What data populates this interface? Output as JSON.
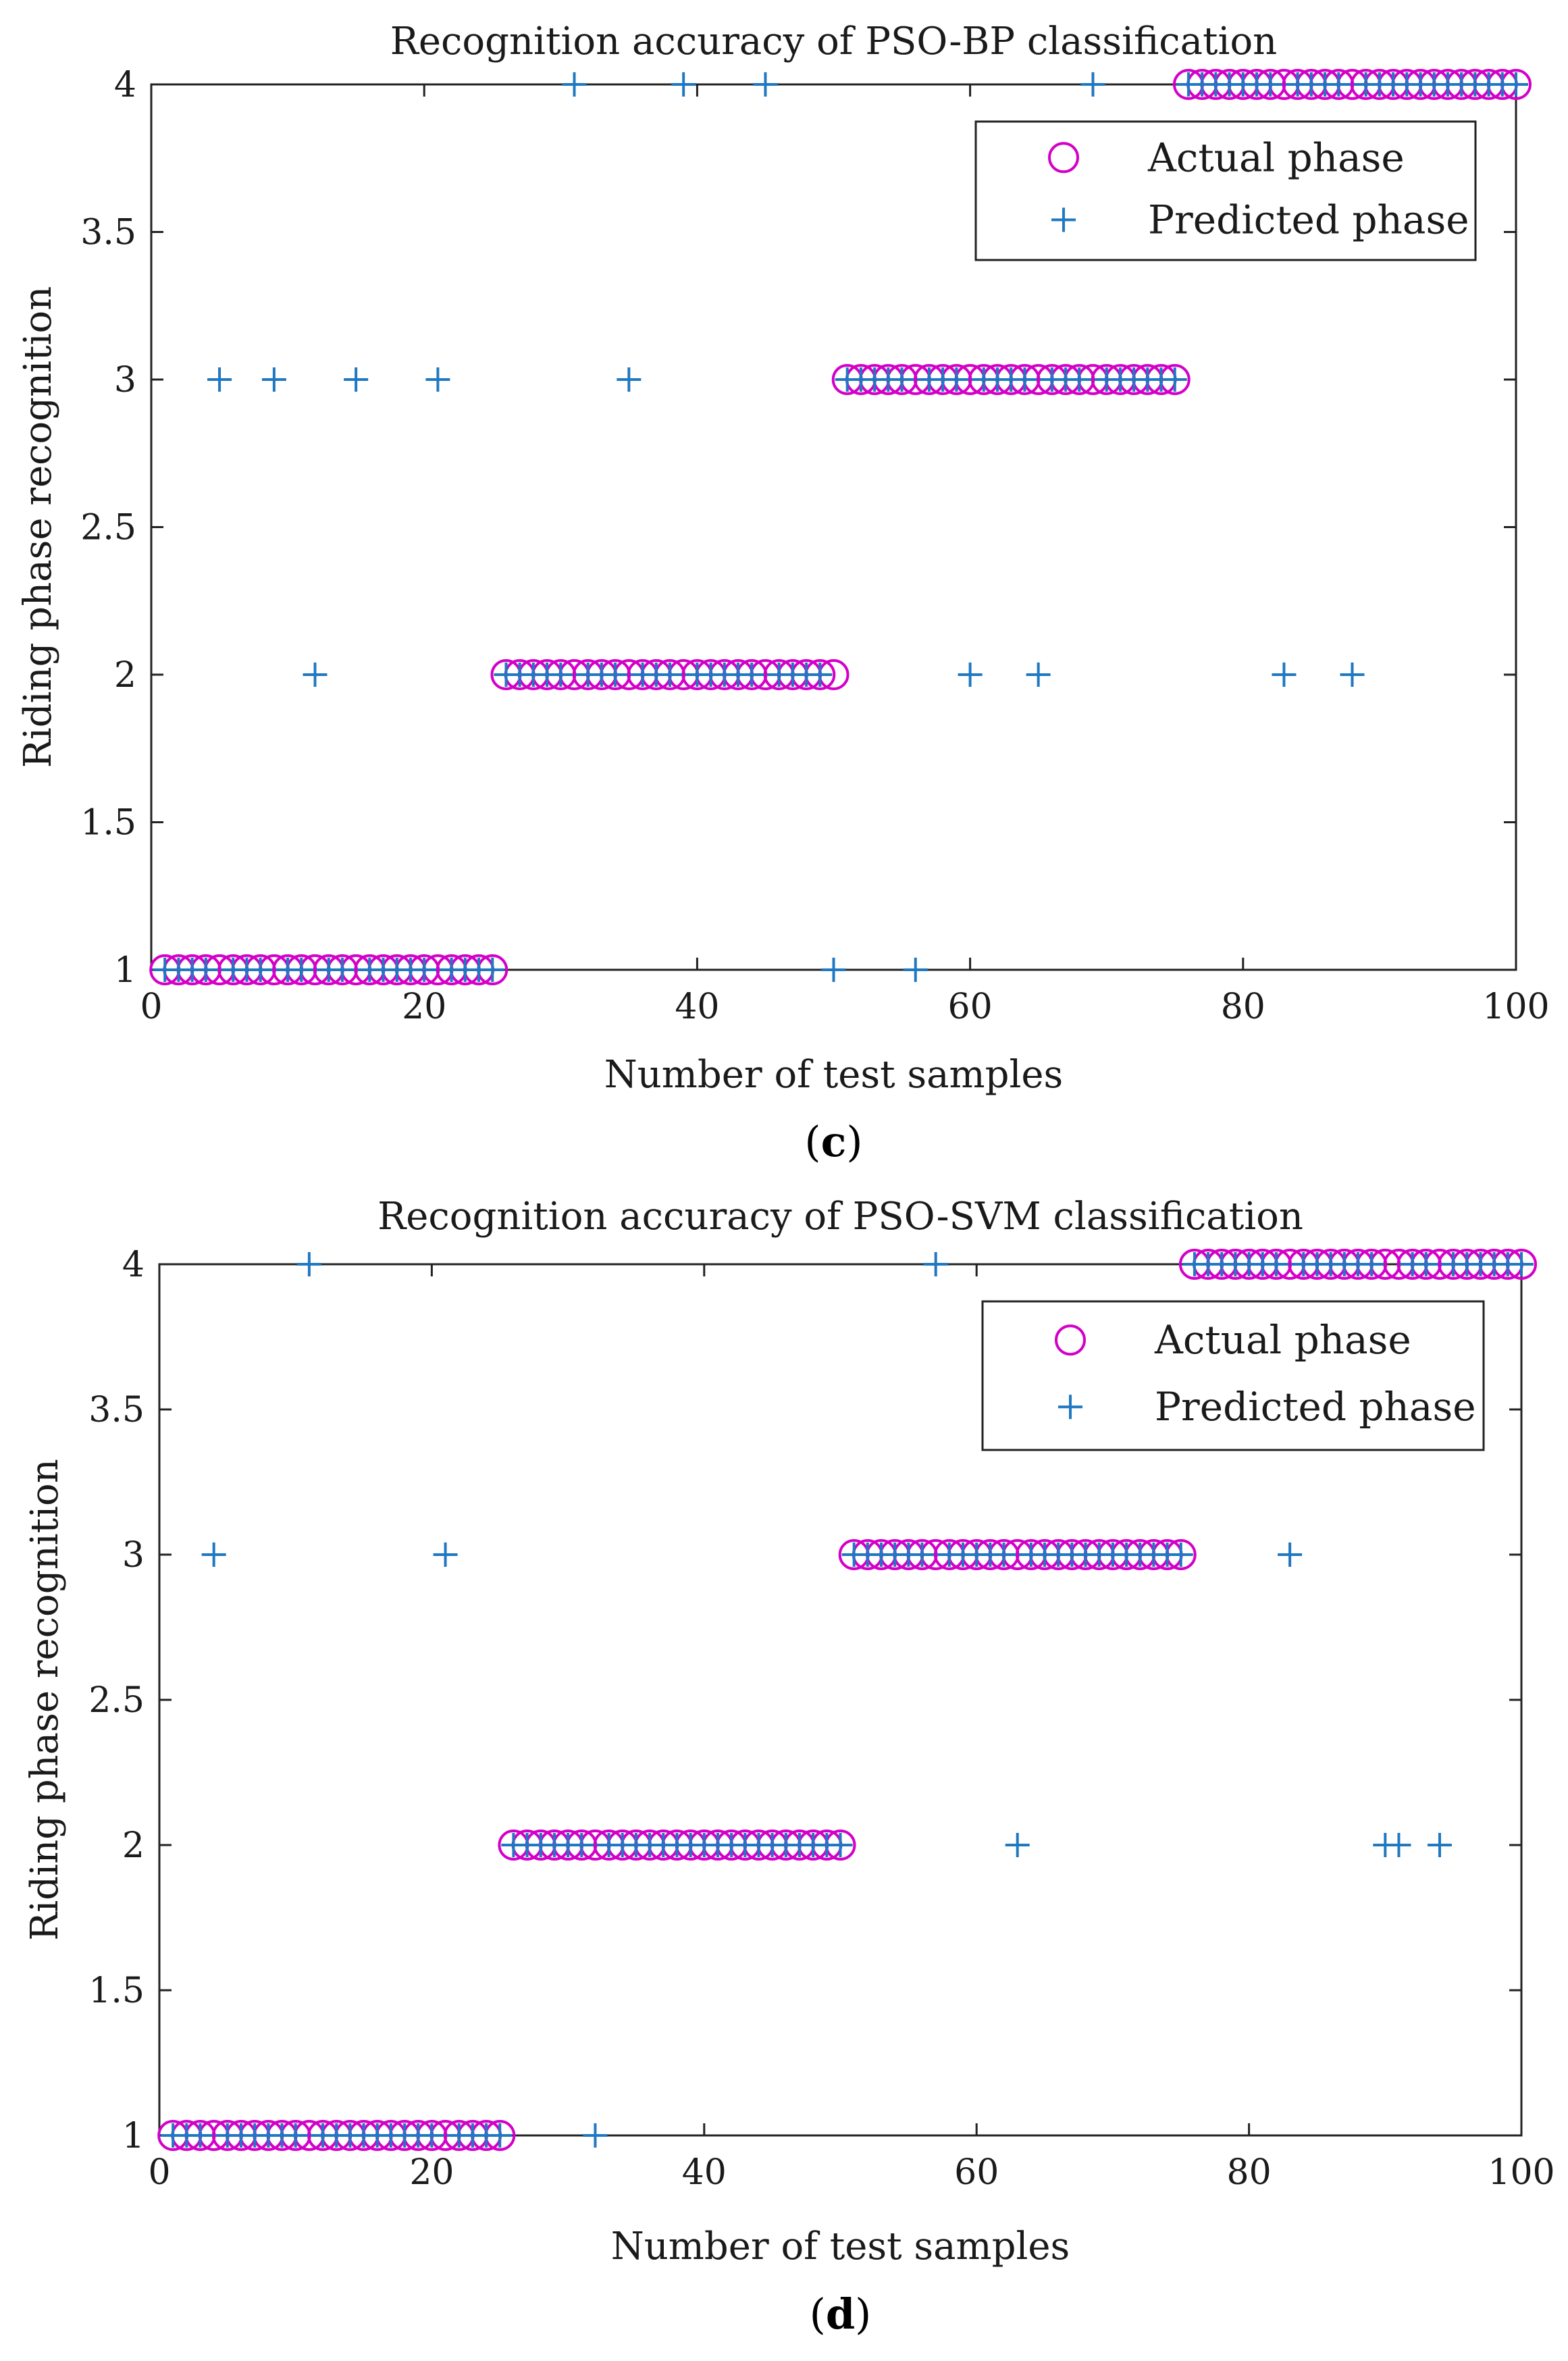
{
  "chart_data": [
    {
      "type": "scatter",
      "title": "Recognition accuracy of PSO-BP classification",
      "xlabel": "Number of test samples",
      "ylabel": "Riding phase recognition",
      "xlim": [
        0,
        100
      ],
      "ylim": [
        1,
        4
      ],
      "xticks": [
        "0",
        "20",
        "40",
        "60",
        "80",
        "100"
      ],
      "yticks": [
        "1",
        "1.5",
        "2",
        "2.5",
        "3",
        "3.5",
        "4"
      ],
      "caption": {
        "open": "(",
        "letter": "c",
        "close": ")"
      },
      "legend": {
        "position": "top-right",
        "entries": [
          "Actual phase",
          "Predicted phase"
        ]
      },
      "series": [
        {
          "name": "Actual phase",
          "marker": "circle",
          "color": "#d400c8",
          "x": [
            1,
            2,
            3,
            4,
            5,
            6,
            7,
            8,
            9,
            10,
            11,
            12,
            13,
            14,
            15,
            16,
            17,
            18,
            19,
            20,
            21,
            22,
            23,
            24,
            25,
            26,
            27,
            28,
            29,
            30,
            31,
            32,
            33,
            34,
            35,
            36,
            37,
            38,
            39,
            40,
            41,
            42,
            43,
            44,
            45,
            46,
            47,
            48,
            49,
            50,
            51,
            52,
            53,
            54,
            55,
            56,
            57,
            58,
            59,
            60,
            61,
            62,
            63,
            64,
            65,
            66,
            67,
            68,
            69,
            70,
            71,
            72,
            73,
            74,
            75,
            76,
            77,
            78,
            79,
            80,
            81,
            82,
            83,
            84,
            85,
            86,
            87,
            88,
            89,
            90,
            91,
            92,
            93,
            94,
            95,
            96,
            97,
            98,
            99,
            100
          ],
          "y": [
            1,
            1,
            1,
            1,
            1,
            1,
            1,
            1,
            1,
            1,
            1,
            1,
            1,
            1,
            1,
            1,
            1,
            1,
            1,
            1,
            1,
            1,
            1,
            1,
            1,
            2,
            2,
            2,
            2,
            2,
            2,
            2,
            2,
            2,
            2,
            2,
            2,
            2,
            2,
            2,
            2,
            2,
            2,
            2,
            2,
            2,
            2,
            2,
            2,
            2,
            3,
            3,
            3,
            3,
            3,
            3,
            3,
            3,
            3,
            3,
            3,
            3,
            3,
            3,
            3,
            3,
            3,
            3,
            3,
            3,
            3,
            3,
            3,
            3,
            3,
            4,
            4,
            4,
            4,
            4,
            4,
            4,
            4,
            4,
            4,
            4,
            4,
            4,
            4,
            4,
            4,
            4,
            4,
            4,
            4,
            4,
            4,
            4,
            4,
            4
          ]
        },
        {
          "name": "Predicted phase",
          "marker": "plus",
          "color": "#1f78c1",
          "x": [
            1,
            2,
            3,
            4,
            5,
            6,
            7,
            8,
            9,
            10,
            11,
            12,
            13,
            14,
            15,
            16,
            17,
            18,
            19,
            20,
            21,
            22,
            23,
            24,
            25,
            26,
            27,
            28,
            29,
            30,
            31,
            32,
            33,
            34,
            35,
            36,
            37,
            38,
            39,
            40,
            41,
            42,
            43,
            44,
            45,
            46,
            47,
            48,
            49,
            50,
            51,
            52,
            53,
            54,
            55,
            56,
            57,
            58,
            59,
            60,
            61,
            62,
            63,
            64,
            65,
            66,
            67,
            68,
            69,
            70,
            71,
            72,
            73,
            74,
            75,
            76,
            77,
            78,
            79,
            80,
            81,
            82,
            83,
            84,
            85,
            86,
            87,
            88,
            89,
            90,
            91,
            92,
            93,
            94,
            95,
            96,
            97,
            98,
            99,
            100
          ],
          "y": [
            1,
            1,
            1,
            1,
            3,
            1,
            1,
            1,
            3,
            1,
            1,
            2,
            1,
            1,
            3,
            1,
            1,
            1,
            1,
            1,
            3,
            1,
            1,
            1,
            1,
            2,
            2,
            2,
            2,
            2,
            4,
            2,
            2,
            2,
            3,
            2,
            2,
            2,
            4,
            2,
            2,
            2,
            2,
            2,
            4,
            2,
            2,
            2,
            2,
            1,
            3,
            3,
            3,
            3,
            3,
            1,
            3,
            3,
            3,
            2,
            3,
            3,
            3,
            3,
            2,
            3,
            3,
            3,
            4,
            3,
            3,
            3,
            3,
            3,
            3,
            4,
            4,
            4,
            4,
            4,
            4,
            4,
            2,
            4,
            4,
            4,
            4,
            2,
            4,
            4,
            4,
            4,
            4,
            4,
            4,
            4,
            4,
            4,
            4,
            4
          ]
        }
      ]
    },
    {
      "type": "scatter",
      "title": "Recognition accuracy of PSO-SVM classification",
      "xlabel": "Number of test samples",
      "ylabel": "Riding phase recognition",
      "xlim": [
        0,
        100
      ],
      "ylim": [
        1,
        4
      ],
      "xticks": [
        "0",
        "20",
        "40",
        "60",
        "80",
        "100"
      ],
      "yticks": [
        "1",
        "1.5",
        "2",
        "2.5",
        "3",
        "3.5",
        "4"
      ],
      "caption": {
        "open": "(",
        "letter": "d",
        "close": ")"
      },
      "legend": {
        "position": "top-right",
        "entries": [
          "Actual phase",
          "Predicted phase"
        ]
      },
      "series": [
        {
          "name": "Actual phase",
          "marker": "circle",
          "color": "#d400c8",
          "x": [
            1,
            2,
            3,
            4,
            5,
            6,
            7,
            8,
            9,
            10,
            11,
            12,
            13,
            14,
            15,
            16,
            17,
            18,
            19,
            20,
            21,
            22,
            23,
            24,
            25,
            26,
            27,
            28,
            29,
            30,
            31,
            32,
            33,
            34,
            35,
            36,
            37,
            38,
            39,
            40,
            41,
            42,
            43,
            44,
            45,
            46,
            47,
            48,
            49,
            50,
            51,
            52,
            53,
            54,
            55,
            56,
            57,
            58,
            59,
            60,
            61,
            62,
            63,
            64,
            65,
            66,
            67,
            68,
            69,
            70,
            71,
            72,
            73,
            74,
            75,
            76,
            77,
            78,
            79,
            80,
            81,
            82,
            83,
            84,
            85,
            86,
            87,
            88,
            89,
            90,
            91,
            92,
            93,
            94,
            95,
            96,
            97,
            98,
            99,
            100
          ],
          "y": [
            1,
            1,
            1,
            1,
            1,
            1,
            1,
            1,
            1,
            1,
            1,
            1,
            1,
            1,
            1,
            1,
            1,
            1,
            1,
            1,
            1,
            1,
            1,
            1,
            1,
            2,
            2,
            2,
            2,
            2,
            2,
            2,
            2,
            2,
            2,
            2,
            2,
            2,
            2,
            2,
            2,
            2,
            2,
            2,
            2,
            2,
            2,
            2,
            2,
            2,
            3,
            3,
            3,
            3,
            3,
            3,
            3,
            3,
            3,
            3,
            3,
            3,
            3,
            3,
            3,
            3,
            3,
            3,
            3,
            3,
            3,
            3,
            3,
            3,
            3,
            4,
            4,
            4,
            4,
            4,
            4,
            4,
            4,
            4,
            4,
            4,
            4,
            4,
            4,
            4,
            4,
            4,
            4,
            4,
            4,
            4,
            4,
            4,
            4,
            4
          ]
        },
        {
          "name": "Predicted phase",
          "marker": "plus",
          "color": "#1f78c1",
          "x": [
            1,
            2,
            3,
            4,
            5,
            6,
            7,
            8,
            9,
            10,
            11,
            12,
            13,
            14,
            15,
            16,
            17,
            18,
            19,
            20,
            21,
            22,
            23,
            24,
            25,
            26,
            27,
            28,
            29,
            30,
            31,
            32,
            33,
            34,
            35,
            36,
            37,
            38,
            39,
            40,
            41,
            42,
            43,
            44,
            45,
            46,
            47,
            48,
            49,
            50,
            51,
            52,
            53,
            54,
            55,
            56,
            57,
            58,
            59,
            60,
            61,
            62,
            63,
            64,
            65,
            66,
            67,
            68,
            69,
            70,
            71,
            72,
            73,
            74,
            75,
            76,
            77,
            78,
            79,
            80,
            81,
            82,
            83,
            84,
            85,
            86,
            87,
            88,
            89,
            90,
            91,
            92,
            93,
            94,
            95,
            96,
            97,
            98,
            99,
            100
          ],
          "y": [
            1,
            1,
            1,
            3,
            1,
            1,
            1,
            1,
            1,
            1,
            4,
            1,
            1,
            1,
            1,
            1,
            1,
            1,
            1,
            1,
            3,
            1,
            1,
            1,
            1,
            2,
            2,
            2,
            2,
            2,
            2,
            1,
            2,
            2,
            2,
            2,
            2,
            2,
            2,
            2,
            2,
            2,
            2,
            2,
            2,
            2,
            2,
            2,
            2,
            2,
            3,
            3,
            3,
            3,
            3,
            3,
            4,
            3,
            3,
            3,
            3,
            3,
            2,
            3,
            3,
            3,
            3,
            3,
            3,
            3,
            3,
            3,
            3,
            3,
            3,
            4,
            4,
            4,
            4,
            4,
            4,
            4,
            3,
            4,
            4,
            4,
            4,
            4,
            4,
            2,
            2,
            4,
            4,
            2,
            4,
            4,
            4,
            4,
            4,
            4
          ]
        }
      ]
    }
  ]
}
